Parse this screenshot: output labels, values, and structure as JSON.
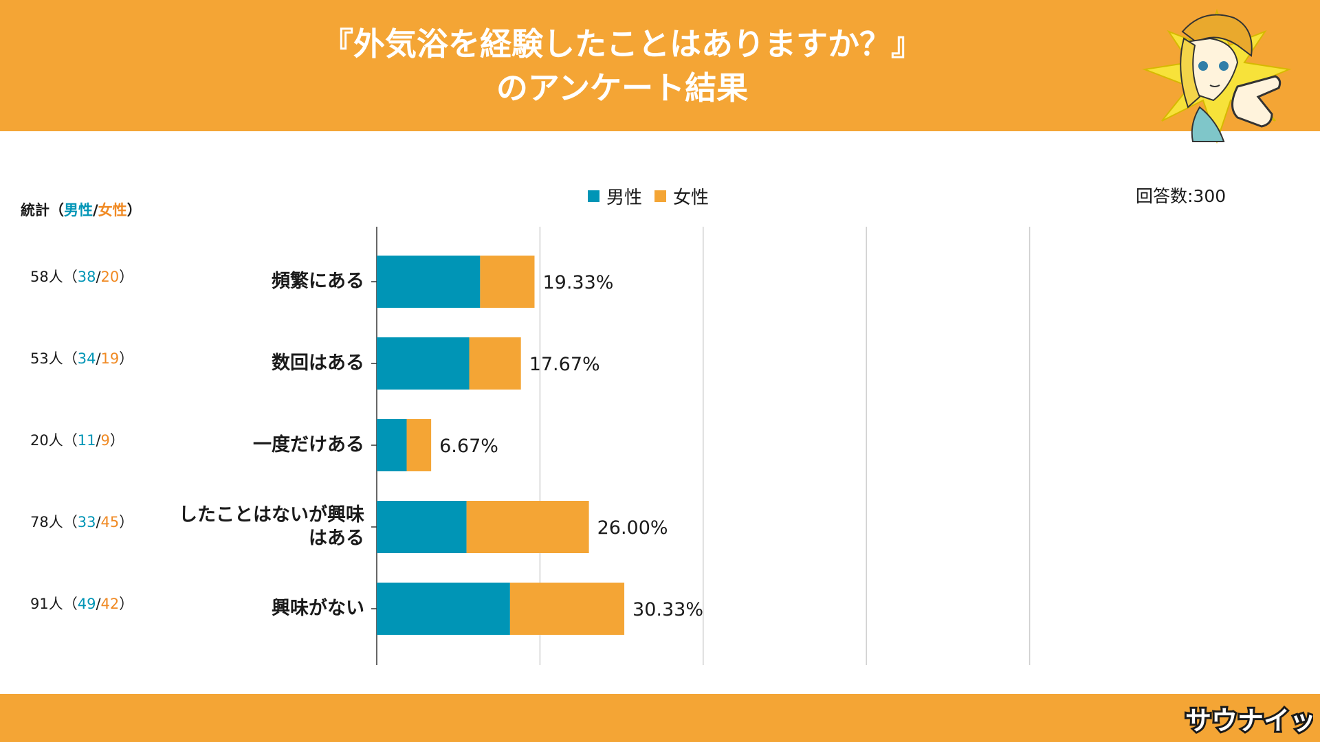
{
  "header": {
    "title_line1": "『外気浴を経験したことはありますか？』",
    "title_line2": "のアンケート結果",
    "background_color": "#f4a535"
  },
  "legend": {
    "male_label": "男性",
    "female_label": "女性",
    "male_color": "#0095b6",
    "female_color": "#f4a535"
  },
  "responses_label": "回答数:300",
  "stats": {
    "header_prefix": "統計（",
    "header_male": "男性",
    "header_sep": "/",
    "header_female": "女性",
    "header_suffix": "）",
    "rows": [
      {
        "total": "58人",
        "male": "38",
        "female": "20"
      },
      {
        "total": "53人",
        "male": "34",
        "female": "19"
      },
      {
        "total": "20人",
        "male": "11",
        "female": "9"
      },
      {
        "total": "78人",
        "male": "33",
        "female": "45"
      },
      {
        "total": "91人",
        "male": "49",
        "female": "42"
      }
    ],
    "open_paren": "（",
    "sep": "/",
    "close_paren": "）"
  },
  "chart_data": {
    "type": "bar",
    "orientation": "horizontal",
    "stacked": true,
    "categories": [
      "頻繁にある",
      "数回はある",
      "一度だけある",
      "したことはないが興味はある",
      "興味がない"
    ],
    "category_lines": [
      [
        "頻繁にある"
      ],
      [
        "数回はある"
      ],
      [
        "一度だけある"
      ],
      [
        "したことはないが興味",
        "はある"
      ],
      [
        "興味がない"
      ]
    ],
    "series": [
      {
        "name": "男性",
        "values": [
          38,
          34,
          11,
          33,
          49
        ],
        "color": "#0095b6"
      },
      {
        "name": "女性",
        "values": [
          20,
          19,
          9,
          45,
          42
        ],
        "color": "#f4a535"
      }
    ],
    "data_labels": [
      "19.33%",
      "17.67%",
      "6.67%",
      "26.00%",
      "30.33%"
    ],
    "xlim": [
      0,
      100
    ],
    "grid": true,
    "legend_position": "top-center"
  },
  "brand": {
    "logo_text": "サウナイッチ"
  }
}
